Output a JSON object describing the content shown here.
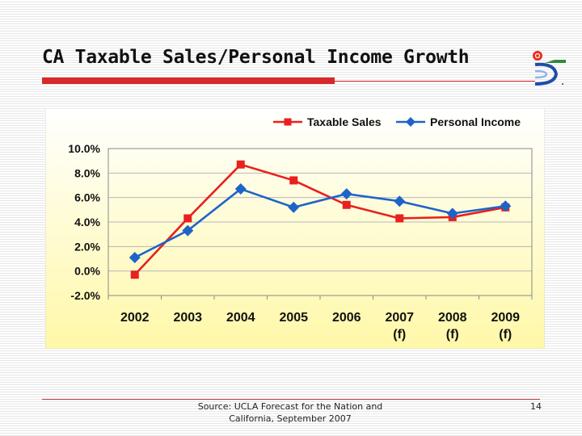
{
  "slide": {
    "title": "CA Taxable Sales/Personal Income Growth",
    "source_line1": "Source: UCLA Forecast for the Nation and",
    "source_line2": "California, September 2007",
    "page_number": "14"
  },
  "colors": {
    "title_bar": "#d9282a",
    "taxable_sales": "#e8211e",
    "personal_income": "#1e64c8",
    "plot_gradient_top": "#ffffff",
    "plot_gradient_bottom": "#fff8a8"
  },
  "icons": [
    "company-logo-icon"
  ],
  "chart_data": {
    "type": "line",
    "categories": [
      [
        "2002"
      ],
      [
        "2003"
      ],
      [
        "2004"
      ],
      [
        "2005"
      ],
      [
        "2006"
      ],
      [
        "2007",
        "(f)"
      ],
      [
        "2008",
        "(f)"
      ],
      [
        "2009",
        "(f)"
      ]
    ],
    "series": [
      {
        "name": "Taxable Sales",
        "color": "#e8211e",
        "marker": "square",
        "values": [
          -0.3,
          4.3,
          8.7,
          7.4,
          5.4,
          4.3,
          4.4,
          5.2
        ]
      },
      {
        "name": "Personal Income",
        "color": "#1e64c8",
        "marker": "diamond",
        "values": [
          1.1,
          3.3,
          6.7,
          5.2,
          6.3,
          5.7,
          4.7,
          5.3
        ]
      }
    ],
    "yticks": [
      "10.0%",
      "8.0%",
      "6.0%",
      "4.0%",
      "2.0%",
      "0.0%",
      "-2.0%"
    ],
    "ylim": [
      -2,
      10
    ],
    "grid": true,
    "legend": "top-right"
  }
}
